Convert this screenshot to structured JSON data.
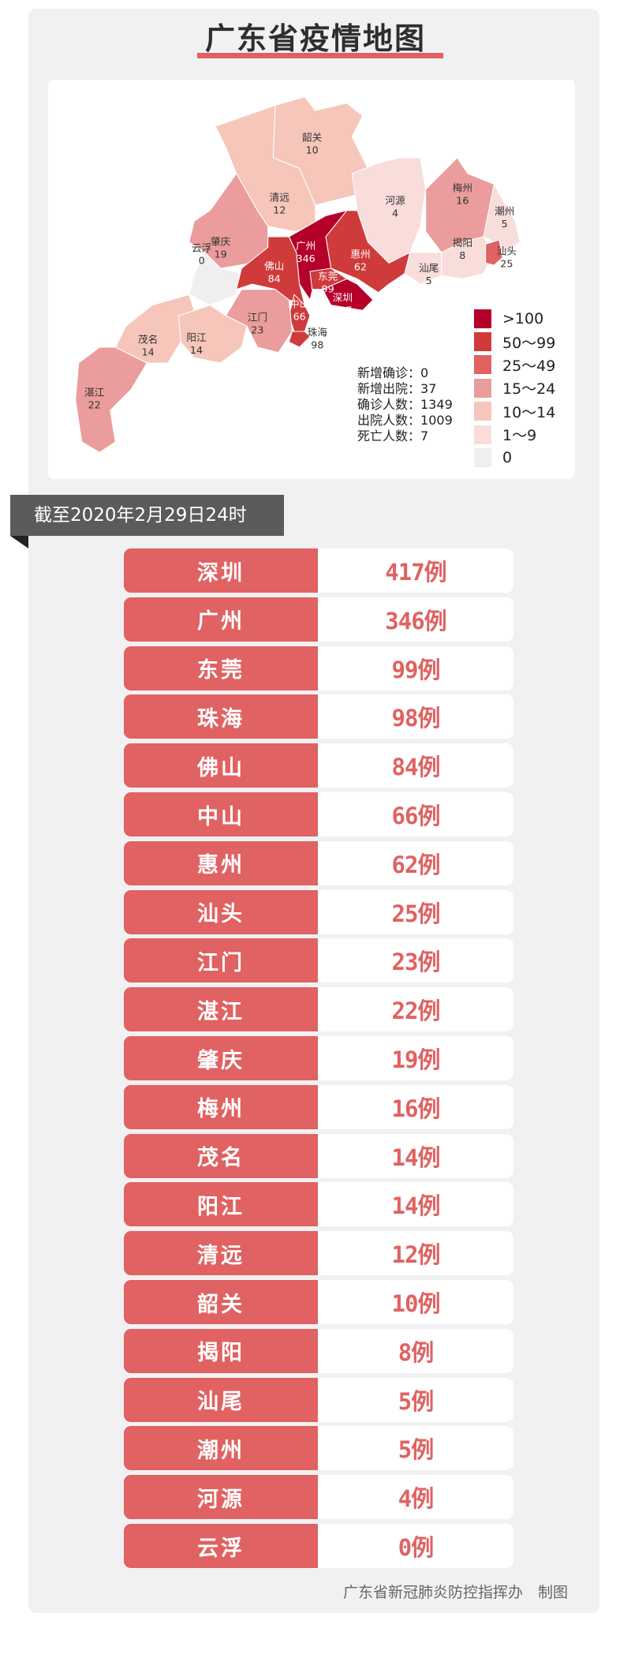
{
  "title": "广东省疫情地图",
  "legend": [
    {
      "label": ">100",
      "color": "#b5002a"
    },
    {
      "label": "50～99",
      "color": "#cf3a3a"
    },
    {
      "label": "25～49",
      "color": "#e06262"
    },
    {
      "label": "15～24",
      "color": "#eb9c9c"
    },
    {
      "label": "10～14",
      "color": "#f6c6ba"
    },
    {
      "label": "1～9",
      "color": "#f9dddb"
    },
    {
      "label": "0",
      "color": "#f1eeef"
    }
  ],
  "stats": [
    {
      "label": "新增确诊",
      "value": "0"
    },
    {
      "label": "新增出院",
      "value": "37"
    },
    {
      "label": "确诊人数",
      "value": "1349"
    },
    {
      "label": "出院人数",
      "value": "1009"
    },
    {
      "label": "死亡人数",
      "value": "7"
    }
  ],
  "map_regions": [
    {
      "name": "韶关",
      "value": "10",
      "color": "#f6c6ba"
    },
    {
      "name": "清远",
      "value": "12",
      "color": "#f6c6ba"
    },
    {
      "name": "肇庆",
      "value": "19",
      "color": "#eb9c9c"
    },
    {
      "name": "云浮",
      "value": "0",
      "color": "#f1eeef"
    },
    {
      "name": "河源",
      "value": "4",
      "color": "#f9dddb"
    },
    {
      "name": "梅州",
      "value": "16",
      "color": "#eb9c9c"
    },
    {
      "name": "潮州",
      "value": "5",
      "color": "#f9dddb"
    },
    {
      "name": "揭阳",
      "value": "8",
      "color": "#f9dddb"
    },
    {
      "name": "汕头",
      "value": "25",
      "color": "#e06262"
    },
    {
      "name": "汕尾",
      "value": "5",
      "color": "#f9dddb"
    },
    {
      "name": "惠州",
      "value": "62",
      "color": "#cf3a3a"
    },
    {
      "name": "广州",
      "value": "346",
      "color": "#b5002a"
    },
    {
      "name": "东莞",
      "value": "99",
      "color": "#cf3a3a"
    },
    {
      "name": "深圳",
      "value": "417",
      "color": "#b5002a"
    },
    {
      "name": "佛山",
      "value": "84",
      "color": "#cf3a3a"
    },
    {
      "name": "中山",
      "value": "66",
      "color": "#cf3a3a"
    },
    {
      "name": "珠海",
      "value": "98",
      "color": "#cf3a3a"
    },
    {
      "name": "江门",
      "value": "23",
      "color": "#eb9c9c"
    },
    {
      "name": "阳江",
      "value": "14",
      "color": "#f6c6ba"
    },
    {
      "name": "茂名",
      "value": "14",
      "color": "#f6c6ba"
    },
    {
      "name": "湛江",
      "value": "22",
      "color": "#eb9c9c"
    }
  ],
  "date_banner": "截至2020年2月29日24时",
  "rows": [
    {
      "name": "深圳",
      "value": "417例"
    },
    {
      "name": "广州",
      "value": "346例"
    },
    {
      "name": "东莞",
      "value": "99例"
    },
    {
      "name": "珠海",
      "value": "98例"
    },
    {
      "name": "佛山",
      "value": "84例"
    },
    {
      "name": "中山",
      "value": "66例"
    },
    {
      "name": "惠州",
      "value": "62例"
    },
    {
      "name": "汕头",
      "value": "25例"
    },
    {
      "name": "江门",
      "value": "23例"
    },
    {
      "name": "湛江",
      "value": "22例"
    },
    {
      "name": "肇庆",
      "value": "19例"
    },
    {
      "name": "梅州",
      "value": "16例"
    },
    {
      "name": "茂名",
      "value": "14例"
    },
    {
      "name": "阳江",
      "value": "14例"
    },
    {
      "name": "清远",
      "value": "12例"
    },
    {
      "name": "韶关",
      "value": "10例"
    },
    {
      "name": "揭阳",
      "value": "8例"
    },
    {
      "name": "汕尾",
      "value": "5例"
    },
    {
      "name": "潮州",
      "value": "5例"
    },
    {
      "name": "河源",
      "value": "4例"
    },
    {
      "name": "云浮",
      "value": "0例"
    }
  ],
  "footer": "广东省新冠肺炎防控指挥办　制图"
}
